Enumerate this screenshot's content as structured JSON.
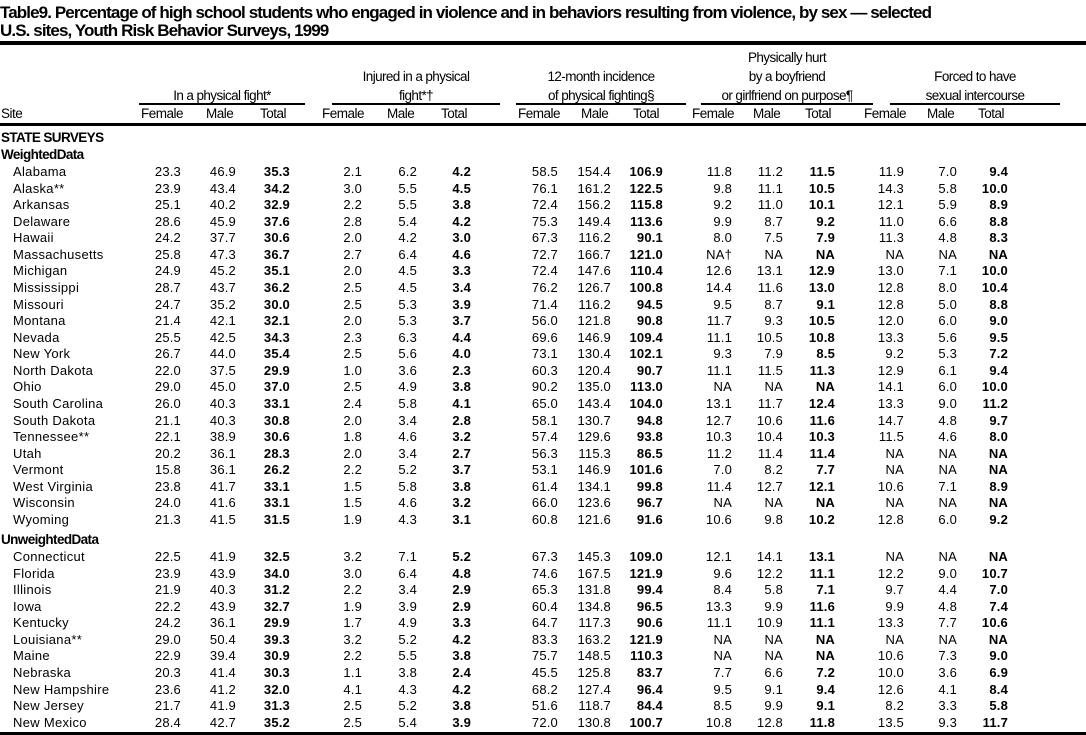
{
  "title": {
    "line1": "Table9. Percentage of high school students who engaged in violence and in behaviors resulting from violence, by sex — selected",
    "line2": "U.S. sites, Youth Risk Behavior Surveys, 1999"
  },
  "header": {
    "site": "Site",
    "groups": [
      {
        "lines": [
          "In a physical fight*"
        ]
      },
      {
        "lines": [
          "Injured in a physical",
          "fight*†"
        ]
      },
      {
        "lines": [
          "12-month incidence",
          "of physical fighting§"
        ]
      },
      {
        "lines": [
          "Physically hurt",
          "by a boyfriend",
          "or girlfriend on purpose¶"
        ]
      },
      {
        "lines": [
          "Forced to have",
          "sexual intercourse"
        ]
      }
    ],
    "subcols": [
      "Female",
      "Male",
      "Total"
    ]
  },
  "sections": [
    {
      "label": "STATE SURVEYS"
    },
    {
      "label": "WeightedData",
      "rows": [
        [
          "Alabama",
          "23.3",
          "46.9",
          "35.3",
          "2.1",
          "6.2",
          "4.2",
          "58.5",
          "154.4",
          "106.9",
          "11.8",
          "11.2",
          "11.5",
          "11.9",
          "7.0",
          "9.4"
        ],
        [
          "Alaska**",
          "23.9",
          "43.4",
          "34.2",
          "3.0",
          "5.5",
          "4.5",
          "76.1",
          "161.2",
          "122.5",
          "9.8",
          "11.1",
          "10.5",
          "14.3",
          "5.8",
          "10.0"
        ],
        [
          "Arkansas",
          "25.1",
          "40.2",
          "32.9",
          "2.2",
          "5.5",
          "3.8",
          "72.4",
          "156.2",
          "115.8",
          "9.2",
          "11.0",
          "10.1",
          "12.1",
          "5.9",
          "8.9"
        ],
        [
          "Delaware",
          "28.6",
          "45.9",
          "37.6",
          "2.8",
          "5.4",
          "4.2",
          "75.3",
          "149.4",
          "113.6",
          "9.9",
          "8.7",
          "9.2",
          "11.0",
          "6.6",
          "8.8"
        ],
        [
          "Hawaii",
          "24.2",
          "37.7",
          "30.6",
          "2.0",
          "4.2",
          "3.0",
          "67.3",
          "116.2",
          "90.1",
          "8.0",
          "7.5",
          "7.9",
          "11.3",
          "4.8",
          "8.3"
        ],
        [
          "Massachusetts",
          "25.8",
          "47.3",
          "36.7",
          "2.7",
          "6.4",
          "4.6",
          "72.7",
          "166.7",
          "121.0",
          "NA†",
          "NA",
          "NA",
          "NA",
          "NA",
          "NA"
        ],
        [
          "Michigan",
          "24.9",
          "45.2",
          "35.1",
          "2.0",
          "4.5",
          "3.3",
          "72.4",
          "147.6",
          "110.4",
          "12.6",
          "13.1",
          "12.9",
          "13.0",
          "7.1",
          "10.0"
        ],
        [
          "Mississippi",
          "28.7",
          "43.7",
          "36.2",
          "2.5",
          "4.5",
          "3.4",
          "76.2",
          "126.7",
          "100.8",
          "14.4",
          "11.6",
          "13.0",
          "12.8",
          "8.0",
          "10.4"
        ],
        [
          "Missouri",
          "24.7",
          "35.2",
          "30.0",
          "2.5",
          "5.3",
          "3.9",
          "71.4",
          "116.2",
          "94.5",
          "9.5",
          "8.7",
          "9.1",
          "12.8",
          "5.0",
          "8.8"
        ],
        [
          "Montana",
          "21.4",
          "42.1",
          "32.1",
          "2.0",
          "5.3",
          "3.7",
          "56.0",
          "121.8",
          "90.8",
          "11.7",
          "9.3",
          "10.5",
          "12.0",
          "6.0",
          "9.0"
        ],
        [
          "Nevada",
          "25.5",
          "42.5",
          "34.3",
          "2.3",
          "6.3",
          "4.4",
          "69.6",
          "146.9",
          "109.4",
          "11.1",
          "10.5",
          "10.8",
          "13.3",
          "5.6",
          "9.5"
        ],
        [
          "New York",
          "26.7",
          "44.0",
          "35.4",
          "2.5",
          "5.6",
          "4.0",
          "73.1",
          "130.4",
          "102.1",
          "9.3",
          "7.9",
          "8.5",
          "9.2",
          "5.3",
          "7.2"
        ],
        [
          "North Dakota",
          "22.0",
          "37.5",
          "29.9",
          "1.0",
          "3.6",
          "2.3",
          "60.3",
          "120.4",
          "90.7",
          "11.1",
          "11.5",
          "11.3",
          "12.9",
          "6.1",
          "9.4"
        ],
        [
          "Ohio",
          "29.0",
          "45.0",
          "37.0",
          "2.5",
          "4.9",
          "3.8",
          "90.2",
          "135.0",
          "113.0",
          "NA",
          "NA",
          "NA",
          "14.1",
          "6.0",
          "10.0"
        ],
        [
          "South Carolina",
          "26.0",
          "40.3",
          "33.1",
          "2.4",
          "5.8",
          "4.1",
          "65.0",
          "143.4",
          "104.0",
          "13.1",
          "11.7",
          "12.4",
          "13.3",
          "9.0",
          "11.2"
        ],
        [
          "South Dakota",
          "21.1",
          "40.3",
          "30.8",
          "2.0",
          "3.4",
          "2.8",
          "58.1",
          "130.7",
          "94.8",
          "12.7",
          "10.6",
          "11.6",
          "14.7",
          "4.8",
          "9.7"
        ],
        [
          "Tennessee**",
          "22.1",
          "38.9",
          "30.6",
          "1.8",
          "4.6",
          "3.2",
          "57.4",
          "129.6",
          "93.8",
          "10.3",
          "10.4",
          "10.3",
          "11.5",
          "4.6",
          "8.0"
        ],
        [
          "Utah",
          "20.2",
          "36.1",
          "28.3",
          "2.0",
          "3.4",
          "2.7",
          "56.3",
          "115.3",
          "86.5",
          "11.2",
          "11.4",
          "11.4",
          "NA",
          "NA",
          "NA"
        ],
        [
          "Vermont",
          "15.8",
          "36.1",
          "26.2",
          "2.2",
          "5.2",
          "3.7",
          "53.1",
          "146.9",
          "101.6",
          "7.0",
          "8.2",
          "7.7",
          "NA",
          "NA",
          "NA"
        ],
        [
          "West Virginia",
          "23.8",
          "41.7",
          "33.1",
          "1.5",
          "5.8",
          "3.8",
          "61.4",
          "134.1",
          "99.8",
          "11.4",
          "12.7",
          "12.1",
          "10.6",
          "7.1",
          "8.9"
        ],
        [
          "Wisconsin",
          "24.0",
          "41.6",
          "33.1",
          "1.5",
          "4.6",
          "3.2",
          "66.0",
          "123.6",
          "96.7",
          "NA",
          "NA",
          "NA",
          "NA",
          "NA",
          "NA"
        ],
        [
          "Wyoming",
          "21.3",
          "41.5",
          "31.5",
          "1.9",
          "4.3",
          "3.1",
          "60.8",
          "121.6",
          "91.6",
          "10.6",
          "9.8",
          "10.2",
          "12.8",
          "6.0",
          "9.2"
        ]
      ]
    },
    {
      "label": "UnweightedData",
      "rows": [
        [
          "Connecticut",
          "22.5",
          "41.9",
          "32.5",
          "3.2",
          "7.1",
          "5.2",
          "67.3",
          "145.3",
          "109.0",
          "12.1",
          "14.1",
          "13.1",
          "NA",
          "NA",
          "NA"
        ],
        [
          "Florida",
          "23.9",
          "43.9",
          "34.0",
          "3.0",
          "6.4",
          "4.8",
          "74.6",
          "167.5",
          "121.9",
          "9.6",
          "12.2",
          "11.1",
          "12.2",
          "9.0",
          "10.7"
        ],
        [
          "Illinois",
          "21.9",
          "40.3",
          "31.2",
          "2.2",
          "3.4",
          "2.9",
          "65.3",
          "131.8",
          "99.4",
          "8.4",
          "5.8",
          "7.1",
          "9.7",
          "4.4",
          "7.0"
        ],
        [
          "Iowa",
          "22.2",
          "43.9",
          "32.7",
          "1.9",
          "3.9",
          "2.9",
          "60.4",
          "134.8",
          "96.5",
          "13.3",
          "9.9",
          "11.6",
          "9.9",
          "4.8",
          "7.4"
        ],
        [
          "Kentucky",
          "24.2",
          "36.1",
          "29.9",
          "1.7",
          "4.9",
          "3.3",
          "64.7",
          "117.3",
          "90.6",
          "11.1",
          "10.9",
          "11.1",
          "13.3",
          "7.7",
          "10.6"
        ],
        [
          "Louisiana**",
          "29.0",
          "50.4",
          "39.3",
          "3.2",
          "5.2",
          "4.2",
          "83.3",
          "163.2",
          "121.9",
          "NA",
          "NA",
          "NA",
          "NA",
          "NA",
          "NA"
        ],
        [
          "Maine",
          "22.9",
          "39.4",
          "30.9",
          "2.2",
          "5.5",
          "3.8",
          "75.7",
          "148.5",
          "110.3",
          "NA",
          "NA",
          "NA",
          "10.6",
          "7.3",
          "9.0"
        ],
        [
          "Nebraska",
          "20.3",
          "41.4",
          "30.3",
          "1.1",
          "3.8",
          "2.4",
          "45.5",
          "125.8",
          "83.7",
          "7.7",
          "6.6",
          "7.2",
          "10.0",
          "3.6",
          "6.9"
        ],
        [
          "New Hampshire",
          "23.6",
          "41.2",
          "32.0",
          "4.1",
          "4.3",
          "4.2",
          "68.2",
          "127.4",
          "96.4",
          "9.5",
          "9.1",
          "9.4",
          "12.6",
          "4.1",
          "8.4"
        ],
        [
          "New Jersey",
          "21.7",
          "41.9",
          "31.3",
          "2.5",
          "5.2",
          "3.8",
          "51.6",
          "118.7",
          "84.4",
          "8.5",
          "9.9",
          "9.1",
          "8.2",
          "3.3",
          "5.8"
        ],
        [
          "New Mexico",
          "28.4",
          "42.7",
          "35.2",
          "2.5",
          "5.4",
          "3.9",
          "72.0",
          "130.8",
          "100.7",
          "10.8",
          "12.8",
          "11.8",
          "13.5",
          "9.3",
          "11.7"
        ]
      ]
    }
  ]
}
